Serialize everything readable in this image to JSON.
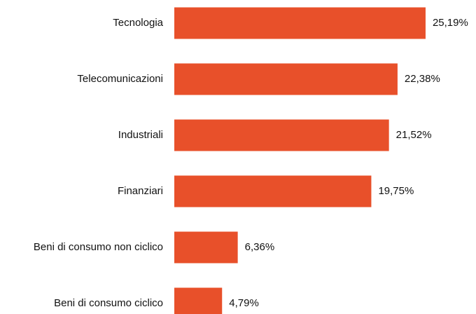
{
  "chart_data": {
    "type": "bar",
    "orientation": "horizontal",
    "categories": [
      "Tecnologia",
      "Telecomunicazioni",
      "Industriali",
      "Finanziari",
      "Beni di consumo non ciclico",
      "Beni di consumo ciclico"
    ],
    "values": [
      25.19,
      22.38,
      21.52,
      19.75,
      6.36,
      4.79
    ],
    "value_labels": [
      "25,19%",
      "22,38%",
      "21,52%",
      "19,75%",
      "6,36%",
      "4,79%"
    ],
    "color": "#e8502a"
  }
}
